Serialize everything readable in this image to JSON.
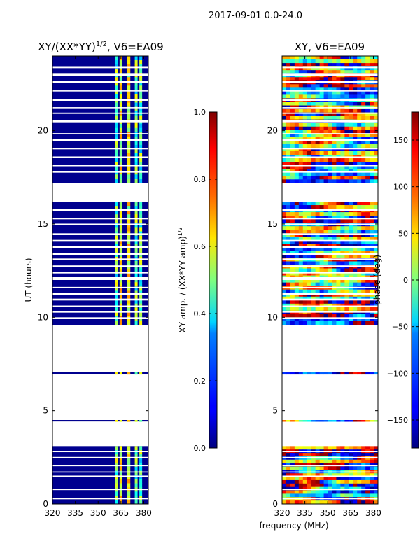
{
  "suptitle": "2017-09-01 0.0-24.0",
  "shared_xlabel": "frequency (MHz)",
  "chart_data": [
    {
      "type": "heatmap",
      "title_main": "XY/(XX*YY)",
      "title_exp": "1/2",
      "title_suffix": ", V6=EA09",
      "xlabel": "frequency (MHz)",
      "ylabel": "UT (hours)",
      "xlim": [
        320,
        383
      ],
      "ylim": [
        0,
        24
      ],
      "xticks": [
        "320",
        "335",
        "350",
        "365",
        "380"
      ],
      "xtick_values": [
        320,
        335,
        350,
        365,
        380
      ],
      "yticks": [
        "0",
        "5",
        "10",
        "15",
        "20"
      ],
      "ytick_values": [
        0,
        5,
        10,
        15,
        20
      ],
      "colorbar": {
        "label_main": "XY amp. / (XX*YY amp)",
        "label_exp": "1/2",
        "range": [
          0,
          1
        ],
        "ticks": [
          "0.0",
          "0.2",
          "0.4",
          "0.6",
          "0.8",
          "1.0"
        ],
        "tick_values": [
          0,
          0.2,
          0.4,
          0.6,
          0.8,
          1.0
        ]
      },
      "bright_channels_mhz": [
        362,
        365,
        370,
        375,
        378
      ]
    },
    {
      "type": "heatmap",
      "title": "XY, V6=EA09",
      "xlabel": "frequency (MHz)",
      "xlim": [
        320,
        383
      ],
      "ylim": [
        0,
        24
      ],
      "xticks": [
        "320",
        "335",
        "350",
        "365",
        "380"
      ],
      "xtick_values": [
        320,
        335,
        350,
        365,
        380
      ],
      "yticks": [
        "0",
        "5",
        "10",
        "15",
        "20"
      ],
      "ytick_values": [
        0,
        5,
        10,
        15,
        20
      ],
      "colorbar": {
        "label": "phase (deg)",
        "range": [
          -180,
          180
        ],
        "ticks": [
          "−150",
          "−100",
          "−50",
          "0",
          "50",
          "100",
          "150"
        ],
        "tick_values": [
          -150,
          -100,
          -50,
          0,
          50,
          100,
          150
        ]
      }
    }
  ],
  "data_hour_ranges": [
    [
      0,
      3.1
    ],
    [
      4.42,
      4.5
    ],
    [
      6.95,
      7.05
    ],
    [
      9.6,
      16.2
    ],
    [
      17.2,
      24
    ]
  ],
  "flagged_hour_ranges": [
    [
      0.25,
      0.32
    ],
    [
      0.75,
      0.8
    ],
    [
      1.45,
      1.52
    ],
    [
      1.68,
      1.74
    ],
    [
      2.02,
      2.1
    ],
    [
      2.45,
      2.52
    ],
    [
      2.78,
      2.83
    ],
    [
      9.9,
      10.0
    ],
    [
      10.25,
      10.32
    ],
    [
      10.55,
      10.63
    ],
    [
      10.9,
      11.0
    ],
    [
      11.2,
      11.3
    ],
    [
      11.55,
      11.63
    ],
    [
      12.0,
      12.15
    ],
    [
      12.35,
      12.45
    ],
    [
      12.7,
      12.78
    ],
    [
      13.05,
      13.15
    ],
    [
      13.35,
      13.45
    ],
    [
      13.7,
      13.8
    ],
    [
      14.05,
      14.15
    ],
    [
      14.4,
      14.5
    ],
    [
      14.95,
      15.02
    ],
    [
      15.25,
      15.32
    ],
    [
      15.7,
      15.8
    ],
    [
      17.75,
      17.85
    ],
    [
      18.1,
      18.15
    ],
    [
      18.55,
      18.62
    ],
    [
      19.0,
      19.06
    ],
    [
      19.45,
      19.55
    ],
    [
      19.8,
      19.87
    ],
    [
      20.45,
      20.55
    ],
    [
      20.9,
      20.97
    ],
    [
      21.2,
      21.26
    ],
    [
      21.6,
      21.68
    ],
    [
      22.1,
      22.16
    ],
    [
      22.55,
      22.65
    ],
    [
      22.95,
      23.05
    ],
    [
      23.35,
      23.42
    ]
  ]
}
